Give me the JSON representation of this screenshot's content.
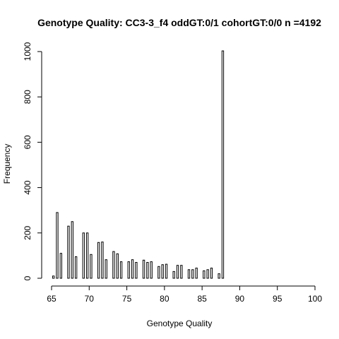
{
  "chart_data": {
    "type": "bar",
    "title": "Genotype Quality: CC3-3_f4 oddGT:0/1  cohortGT:0/0 n =4192",
    "xlabel": "Genotype Quality",
    "ylabel": "Frequency",
    "xlim": [
      65,
      100
    ],
    "ylim": [
      0,
      1000
    ],
    "x_ticks": [
      65,
      70,
      75,
      80,
      85,
      90,
      95,
      100
    ],
    "y_ticks": [
      0,
      200,
      400,
      600,
      800,
      1000
    ],
    "bin_width": 0.5,
    "bars": [
      {
        "x": 65.25,
        "value": 10
      },
      {
        "x": 65.75,
        "value": 290
      },
      {
        "x": 66.25,
        "value": 110
      },
      {
        "x": 67.25,
        "value": 230
      },
      {
        "x": 67.75,
        "value": 250
      },
      {
        "x": 68.25,
        "value": 95
      },
      {
        "x": 69.25,
        "value": 200
      },
      {
        "x": 69.75,
        "value": 200
      },
      {
        "x": 70.25,
        "value": 105
      },
      {
        "x": 71.25,
        "value": 158
      },
      {
        "x": 71.75,
        "value": 160
      },
      {
        "x": 72.25,
        "value": 82
      },
      {
        "x": 73.25,
        "value": 118
      },
      {
        "x": 73.75,
        "value": 108
      },
      {
        "x": 74.25,
        "value": 73
      },
      {
        "x": 75.25,
        "value": 73
      },
      {
        "x": 75.75,
        "value": 82
      },
      {
        "x": 76.25,
        "value": 70
      },
      {
        "x": 77.25,
        "value": 80
      },
      {
        "x": 77.75,
        "value": 70
      },
      {
        "x": 78.25,
        "value": 73
      },
      {
        "x": 79.25,
        "value": 52
      },
      {
        "x": 79.75,
        "value": 60
      },
      {
        "x": 80.25,
        "value": 62
      },
      {
        "x": 81.25,
        "value": 30
      },
      {
        "x": 81.75,
        "value": 57
      },
      {
        "x": 82.25,
        "value": 57
      },
      {
        "x": 83.25,
        "value": 38
      },
      {
        "x": 83.75,
        "value": 38
      },
      {
        "x": 84.25,
        "value": 45
      },
      {
        "x": 85.25,
        "value": 33
      },
      {
        "x": 85.75,
        "value": 38
      },
      {
        "x": 86.25,
        "value": 45
      },
      {
        "x": 87.25,
        "value": 20
      },
      {
        "x": 87.75,
        "value": 1003
      }
    ],
    "grid": false,
    "legend": "none"
  }
}
